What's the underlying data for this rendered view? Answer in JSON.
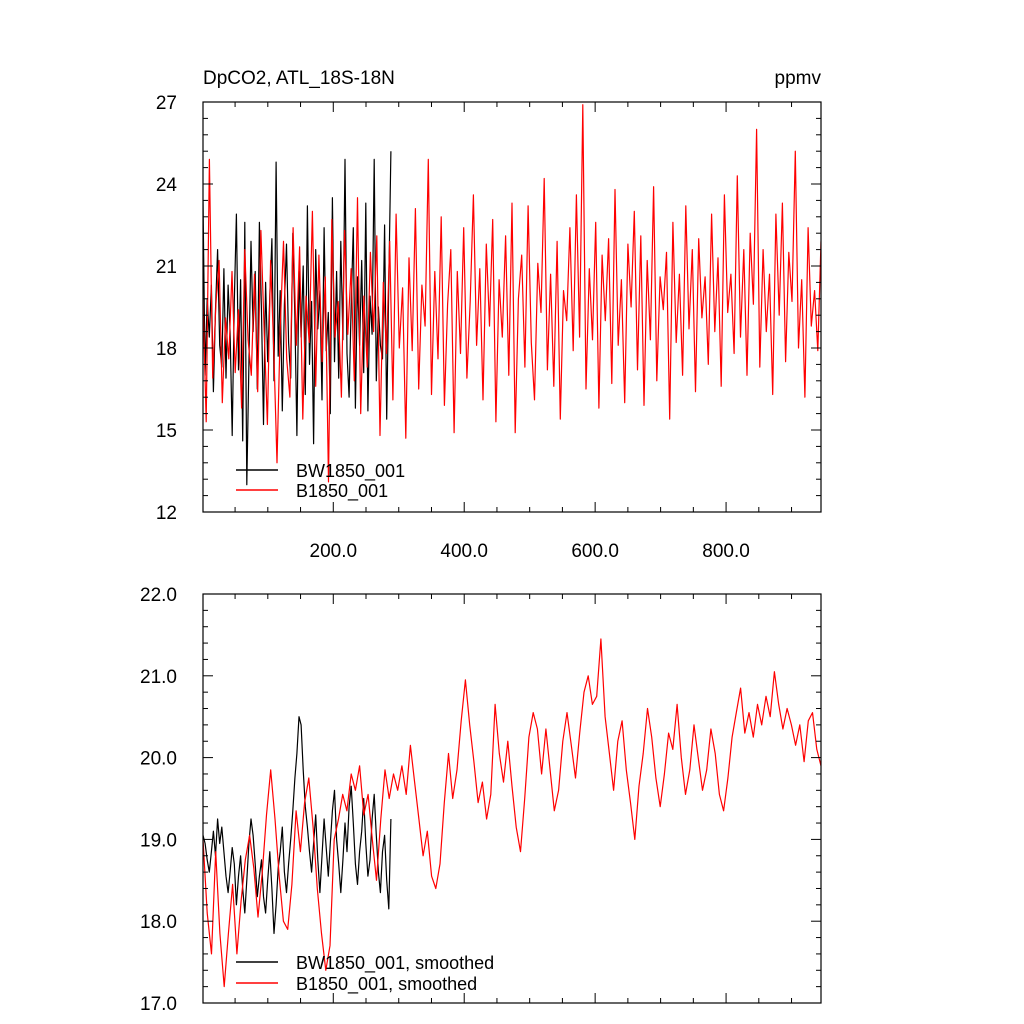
{
  "chart_data": [
    {
      "type": "line",
      "title_left": "DpCO2, ATL_18S-18N",
      "title_right": "ppmv",
      "xlabel": "",
      "ylabel": "",
      "xlim": [
        1,
        945
      ],
      "ylim": [
        12,
        27
      ],
      "x_ticks": [
        200,
        400,
        600,
        800
      ],
      "x_tick_labels": [
        "200.0",
        "400.0",
        "600.0",
        "800.0"
      ],
      "y_ticks": [
        12,
        15,
        18,
        21,
        24,
        27
      ],
      "y_tick_labels": [
        "12",
        "15",
        "18",
        "21",
        "24",
        "27"
      ],
      "grid": false,
      "legend_placement": "bottom-left",
      "series": [
        {
          "name": "BW1850_001",
          "color": "#000000",
          "x_range": [
            1,
            288
          ],
          "values": [
            23.4,
            17.0,
            19.8,
            18.4,
            20.3,
            16.4,
            19.4,
            21.6,
            18.1,
            17.3,
            20.9,
            16.9,
            20.3,
            18.6,
            14.8,
            19.7,
            22.9,
            17.2,
            20.5,
            14.6,
            22.6,
            13.0,
            17.4,
            21.9,
            18.6,
            20.8,
            16.5,
            22.6,
            19.3,
            15.2,
            20.4,
            17.5,
            19.9,
            22.0,
            16.8,
            24.8,
            17.7,
            20.1,
            15.7,
            19.6,
            21.8,
            18.2,
            16.9,
            22.2,
            19.1,
            14.8,
            20.8,
            18.4,
            21.0,
            16.3,
            23.2,
            17.4,
            19.7,
            14.5,
            21.6,
            18.7,
            20.1,
            16.1,
            22.4,
            17.9,
            19.3,
            15.6,
            23.5,
            17.5,
            20.8,
            16.9,
            21.9,
            18.3,
            24.9,
            17.8,
            16.2,
            19.6,
            22.4,
            15.8,
            20.6,
            18.1,
            21.2,
            17.1,
            23.3,
            15.7,
            19.9,
            18.5,
            24.9,
            16.8,
            19.5,
            18.1,
            17.6,
            22.5,
            15.4,
            20.4,
            25.2
          ]
        },
        {
          "name": "B1850_001",
          "color": "#ff0000",
          "x_range": [
            1,
            945
          ],
          "values": [
            19.8,
            15.3,
            24.9,
            16.9,
            19.6,
            21.2,
            16.0,
            19.1,
            17.6,
            20.8,
            17.1,
            19.4,
            15.8,
            21.6,
            18.3,
            17.0,
            20.7,
            16.4,
            22.3,
            18.6,
            15.2,
            21.2,
            17.9,
            13.8,
            18.8,
            21.9,
            17.6,
            16.2,
            22.4,
            18.1,
            21.7,
            15.4,
            19.9,
            18.2,
            23.0,
            16.6,
            21.4,
            17.5,
            20.6,
            13.1,
            22.7,
            18.4,
            19.7,
            16.2,
            22.3,
            18.5,
            20.9,
            16.8,
            23.5,
            15.6,
            19.9,
            17.3,
            21.5,
            18.6,
            22.1,
            14.8,
            20.4,
            17.8,
            21.9,
            16.1,
            22.9,
            18.0,
            20.2,
            14.7,
            21.3,
            17.9,
            23.1,
            16.5,
            20.3,
            18.8,
            24.9,
            16.3,
            20.8,
            17.6,
            22.8,
            15.9,
            19.6,
            21.6,
            14.9,
            20.8,
            17.8,
            22.4,
            16.9,
            19.7,
            23.6,
            18.1,
            20.9,
            16.1,
            21.8,
            18.8,
            22.7,
            15.3,
            20.5,
            18.4,
            22.1,
            17.0,
            23.3,
            14.9,
            19.8,
            21.4,
            17.3,
            23.2,
            18.2,
            16.1,
            21.1,
            19.3,
            24.2,
            17.2,
            20.7,
            16.6,
            21.9,
            15.4,
            20.1,
            19.0,
            22.4,
            17.9,
            23.6,
            18.4,
            26.9,
            16.5,
            20.9,
            18.3,
            22.6,
            15.8,
            21.4,
            19.0,
            22.0,
            16.7,
            23.8,
            18.1,
            20.5,
            16.0,
            21.8,
            19.5,
            23.0,
            17.2,
            22.1,
            15.9,
            21.2,
            18.3,
            23.9,
            16.8,
            20.6,
            19.4,
            21.5,
            15.4,
            22.6,
            18.2,
            20.7,
            17.0,
            23.2,
            18.7,
            21.6,
            16.4,
            22.0,
            19.1,
            20.6,
            17.4,
            22.9,
            18.6,
            21.3,
            16.6,
            23.6,
            19.3,
            20.7,
            17.8,
            24.3,
            18.4,
            21.6,
            17.0,
            22.2,
            19.6,
            26.0,
            17.3,
            21.6,
            18.6,
            20.7,
            16.3,
            22.9,
            19.2,
            23.3,
            17.5,
            21.5,
            19.7,
            25.2,
            18.0,
            20.5,
            16.2,
            22.4,
            18.8,
            20.1,
            17.9,
            21.9
          ]
        }
      ]
    },
    {
      "type": "line",
      "title": "",
      "xlabel": "",
      "ylabel": "",
      "xlim": [
        1,
        945
      ],
      "ylim": [
        17.0,
        22.0
      ],
      "x_ticks": [
        200,
        400,
        600,
        800
      ],
      "x_tick_labels": [],
      "y_ticks": [
        17.0,
        18.0,
        19.0,
        20.0,
        21.0,
        22.0
      ],
      "y_tick_labels": [
        "17.0",
        "18.0",
        "19.0",
        "20.0",
        "21.0",
        "22.0"
      ],
      "grid": false,
      "legend_placement": "bottom-left",
      "series": [
        {
          "name": "BW1850_001, smoothed",
          "color": "#000000",
          "x_range": [
            1,
            288
          ],
          "values": [
            19.05,
            18.95,
            18.75,
            18.6,
            18.85,
            19.1,
            18.8,
            19.25,
            18.95,
            19.15,
            18.85,
            18.55,
            18.35,
            18.6,
            18.9,
            18.7,
            18.2,
            18.55,
            18.8,
            18.4,
            18.1,
            18.5,
            18.95,
            19.25,
            19.05,
            18.7,
            18.3,
            18.55,
            18.75,
            18.3,
            18.1,
            18.5,
            18.85,
            18.4,
            17.85,
            18.2,
            18.65,
            18.85,
            19.15,
            18.6,
            18.35,
            18.7,
            19.0,
            19.35,
            19.75,
            20.05,
            20.5,
            20.4,
            19.85,
            19.4,
            19.15,
            18.85,
            18.6,
            18.95,
            19.3,
            18.75,
            18.35,
            18.8,
            19.25,
            18.9,
            18.55,
            18.95,
            19.35,
            19.6,
            19.0,
            18.7,
            18.35,
            18.75,
            19.2,
            18.85,
            19.4,
            19.65,
            19.2,
            18.7,
            18.45,
            18.85,
            19.1,
            19.5,
            18.95,
            18.55,
            18.75,
            19.25,
            19.55,
            19.05,
            18.6,
            18.35,
            18.85,
            19.05,
            18.5,
            18.15,
            19.25
          ]
        },
        {
          "name": "B1850_001, smoothed",
          "color": "#ff0000",
          "x_range": [
            1,
            945
          ],
          "values": [
            19.0,
            18.1,
            17.6,
            18.85,
            17.85,
            17.2,
            17.85,
            18.45,
            17.6,
            18.25,
            18.75,
            19.05,
            18.65,
            18.05,
            18.6,
            19.3,
            19.85,
            19.25,
            18.55,
            18.0,
            17.9,
            18.45,
            19.35,
            18.85,
            19.45,
            19.75,
            19.15,
            18.4,
            17.85,
            17.4,
            17.7,
            19.0,
            19.25,
            19.55,
            19.35,
            19.8,
            19.6,
            19.9,
            19.3,
            19.55,
            19.0,
            18.5,
            19.25,
            19.85,
            19.5,
            19.8,
            19.6,
            19.9,
            19.55,
            20.15,
            19.7,
            19.25,
            18.8,
            19.1,
            18.55,
            18.4,
            18.7,
            19.45,
            20.05,
            19.5,
            19.85,
            20.45,
            20.95,
            20.4,
            19.95,
            19.45,
            19.7,
            19.25,
            19.55,
            20.65,
            20.05,
            19.7,
            20.2,
            19.65,
            19.15,
            18.85,
            19.5,
            20.25,
            20.55,
            20.35,
            19.8,
            20.35,
            19.85,
            19.35,
            19.6,
            20.2,
            20.55,
            20.15,
            19.75,
            20.3,
            20.8,
            21.0,
            20.65,
            20.75,
            21.45,
            20.5,
            20.05,
            19.6,
            20.2,
            20.45,
            19.85,
            19.45,
            19.0,
            19.65,
            20.05,
            20.6,
            20.25,
            19.75,
            19.4,
            19.8,
            20.3,
            20.1,
            20.65,
            20.0,
            19.55,
            19.85,
            20.4,
            20.0,
            19.6,
            19.85,
            20.35,
            20.05,
            19.55,
            19.35,
            19.75,
            20.25,
            20.55,
            20.85,
            20.3,
            20.55,
            20.25,
            20.65,
            20.4,
            20.75,
            20.5,
            21.05,
            20.65,
            20.35,
            20.6,
            20.4,
            20.15,
            20.4,
            19.95,
            20.45,
            20.55,
            20.1,
            19.9
          ]
        }
      ]
    }
  ]
}
